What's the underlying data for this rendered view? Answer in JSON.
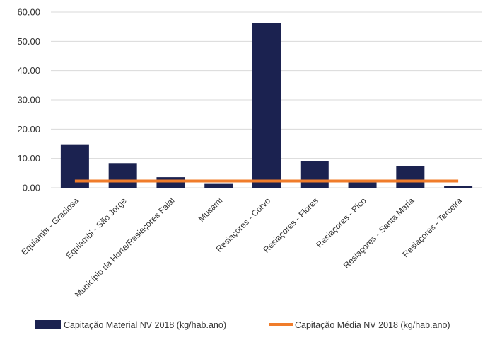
{
  "chart_data": {
    "type": "bar",
    "categories": [
      "Equiambi - Graciosa",
      "Equiambi - São Jorge",
      "Município da Horta/Resiaçores Faial",
      "Musami",
      "Resiaçores - Corvo",
      "Resiaçores - Flores",
      "Resiaçores - Pico",
      "Resiaçores - Santa Maria",
      "Resiaçores - Terceira"
    ],
    "series": [
      {
        "name": "Capitação Material NV 2018 (kg/hab.ano)",
        "type": "bar",
        "color": "#1b2250",
        "values": [
          14.6,
          8.4,
          3.6,
          1.3,
          56.2,
          9.0,
          1.8,
          7.3,
          0.7
        ]
      },
      {
        "name": "Capitação Média NV 2018 (kg/hab.ano)",
        "type": "line",
        "color": "#f07c2a",
        "values": [
          2.3,
          2.3,
          2.3,
          2.3,
          2.3,
          2.3,
          2.3,
          2.3,
          2.3
        ]
      }
    ],
    "yticks": [
      "0.00",
      "10.00",
      "20.00",
      "30.00",
      "40.00",
      "50.00",
      "60.00"
    ],
    "ylim": [
      0,
      60
    ],
    "grid": true,
    "legend_position": "bottom",
    "title": "",
    "xlabel": "",
    "ylabel": ""
  }
}
